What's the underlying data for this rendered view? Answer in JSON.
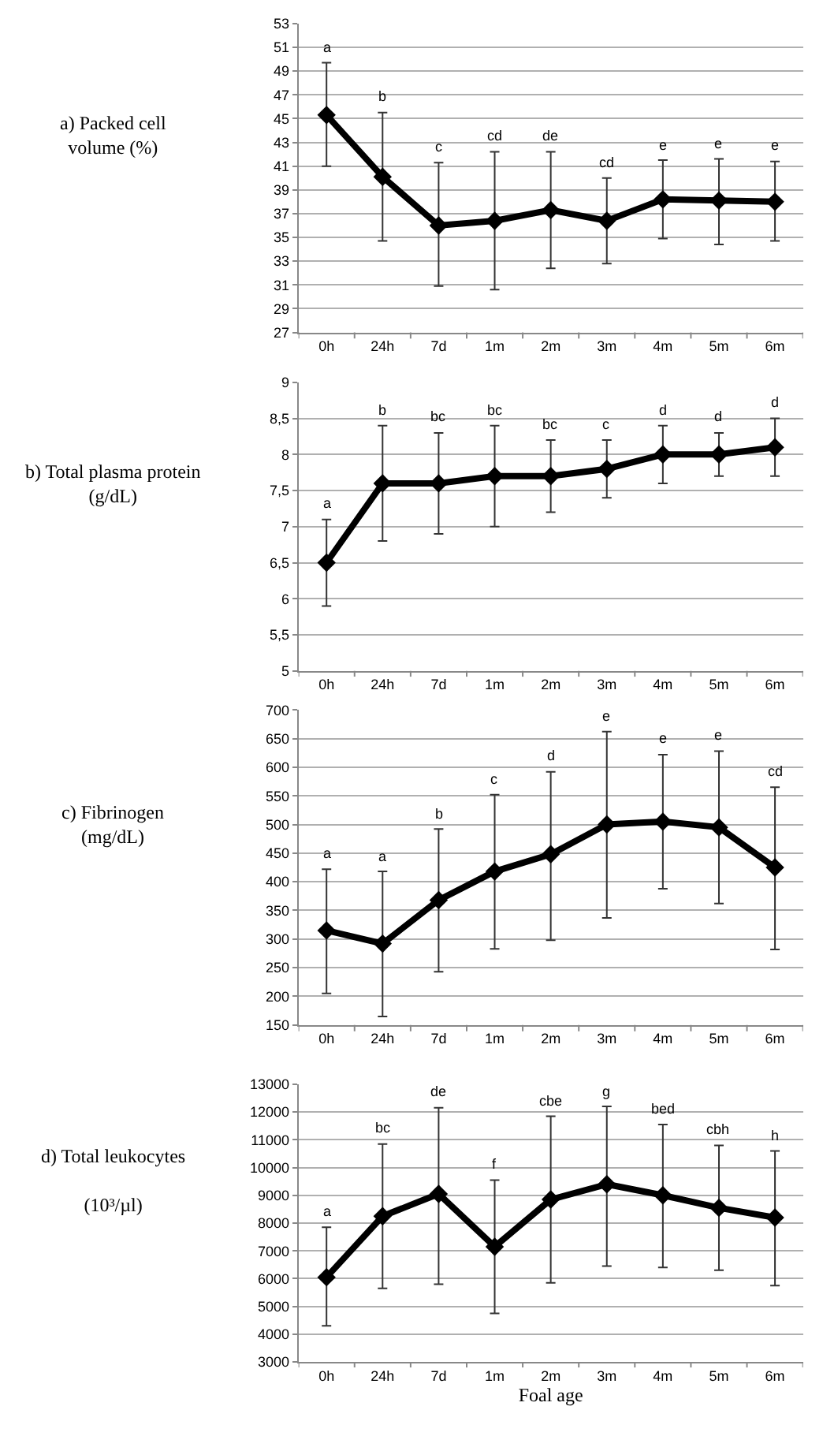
{
  "chart_data": [
    {
      "type": "line",
      "ylabel": "a) Packed cell\nvolume (%)",
      "categories": [
        "0h",
        "24h",
        "7d",
        "1m",
        "2m",
        "3m",
        "4m",
        "5m",
        "6m"
      ],
      "series": [
        {
          "color": "#000000",
          "values": [
            45.3,
            40.1,
            36.0,
            36.4,
            37.3,
            36.4,
            38.2,
            38.1,
            38.0
          ],
          "errors": [
            [
              41,
              49.7
            ],
            [
              34.7,
              45.5
            ],
            [
              30.9,
              41.3
            ],
            [
              30.6,
              42.2
            ],
            [
              32.4,
              42.2
            ],
            [
              32.8,
              40.0
            ],
            [
              34.9,
              41.5
            ],
            [
              34.4,
              41.6
            ],
            [
              34.7,
              41.4
            ]
          ]
        }
      ],
      "ylim": [
        27,
        53
      ],
      "yticks": [
        27,
        29,
        31,
        33,
        35,
        37,
        39,
        41,
        43,
        45,
        47,
        49,
        51,
        53
      ],
      "grid": "y",
      "marker": "diamond",
      "line_style": "solid",
      "annotations": [
        "a",
        "b",
        "c",
        "cd",
        "de",
        "cd",
        "e",
        "e",
        "e"
      ]
    },
    {
      "type": "line",
      "ylabel": "b) Total plasma protein\n(g/dL)",
      "categories": [
        "0h",
        "24h",
        "7d",
        "1m",
        "2m",
        "3m",
        "4m",
        "5m",
        "6m"
      ],
      "series": [
        {
          "color": "#000000",
          "values": [
            6.5,
            7.6,
            7.6,
            7.7,
            7.7,
            7.8,
            8.0,
            8.0,
            8.1
          ],
          "errors": [
            [
              5.9,
              7.1
            ],
            [
              6.8,
              8.4
            ],
            [
              6.9,
              8.3
            ],
            [
              7.0,
              8.4
            ],
            [
              7.2,
              8.2
            ],
            [
              7.4,
              8.2
            ],
            [
              7.6,
              8.4
            ],
            [
              7.7,
              8.3
            ],
            [
              7.7,
              8.5
            ]
          ]
        }
      ],
      "ylim": [
        5,
        9
      ],
      "yticks": [
        5,
        {
          "value": 5.5,
          "label": "5,5"
        },
        6,
        {
          "value": 6.5,
          "label": "6,5"
        },
        7,
        {
          "value": 7.5,
          "label": "7,5"
        },
        8,
        {
          "value": 8.5,
          "label": "8,5"
        },
        9
      ],
      "grid": "y",
      "marker": "diamond",
      "line_style": "solid",
      "annotations": [
        "a",
        "b",
        "bc",
        "bc",
        "bc",
        "c",
        "d",
        "d",
        "d"
      ]
    },
    {
      "type": "line",
      "ylabel": "c) Fibrinogen\n(mg/dL)",
      "categories": [
        "0h",
        "24h",
        "7d",
        "1m",
        "2m",
        "3m",
        "4m",
        "5m",
        "6m"
      ],
      "series": [
        {
          "color": "#000000",
          "values": [
            315,
            292,
            368,
            418,
            448,
            500,
            505,
            495,
            425
          ],
          "errors": [
            [
              205,
              422
            ],
            [
              165,
              418
            ],
            [
              243,
              492
            ],
            [
              283,
              552
            ],
            [
              298,
              592
            ],
            [
              337,
              662
            ],
            [
              388,
              622
            ],
            [
              362,
              628
            ],
            [
              282,
              565
            ]
          ]
        }
      ],
      "ylim": [
        150,
        700
      ],
      "yticks": [
        150,
        200,
        250,
        300,
        350,
        400,
        450,
        500,
        550,
        600,
        650,
        700
      ],
      "grid": "y",
      "marker": "diamond",
      "line_style": "solid",
      "annotations": [
        "a",
        "a",
        "b",
        "c",
        "d",
        "e",
        "e",
        "e",
        "cd"
      ]
    },
    {
      "type": "line",
      "ylabel": "d) Total leukocytes\n\n(10³/µl)",
      "xlabel": "Foal age",
      "categories": [
        "0h",
        "24h",
        "7d",
        "1m",
        "2m",
        "3m",
        "4m",
        "5m",
        "6m"
      ],
      "series": [
        {
          "color": "#000000",
          "values": [
            6050,
            8250,
            9050,
            7150,
            8850,
            9400,
            9000,
            8550,
            8200
          ],
          "errors": [
            [
              4300,
              7850
            ],
            [
              5650,
              10850
            ],
            [
              5800,
              12150
            ],
            [
              4750,
              9550
            ],
            [
              5850,
              11850
            ],
            [
              6450,
              12200
            ],
            [
              6400,
              11550
            ],
            [
              6300,
              10800
            ],
            [
              5750,
              10600
            ]
          ]
        }
      ],
      "ylim": [
        3000,
        13000
      ],
      "yticks": [
        3000,
        4000,
        5000,
        6000,
        7000,
        8000,
        9000,
        10000,
        11000,
        12000,
        13000
      ],
      "grid": "y",
      "marker": "diamond",
      "line_style": "solid",
      "annotations": [
        "a",
        "bc",
        "de",
        "f",
        "cbe",
        "g",
        "bed",
        "cbh",
        "h"
      ]
    }
  ]
}
